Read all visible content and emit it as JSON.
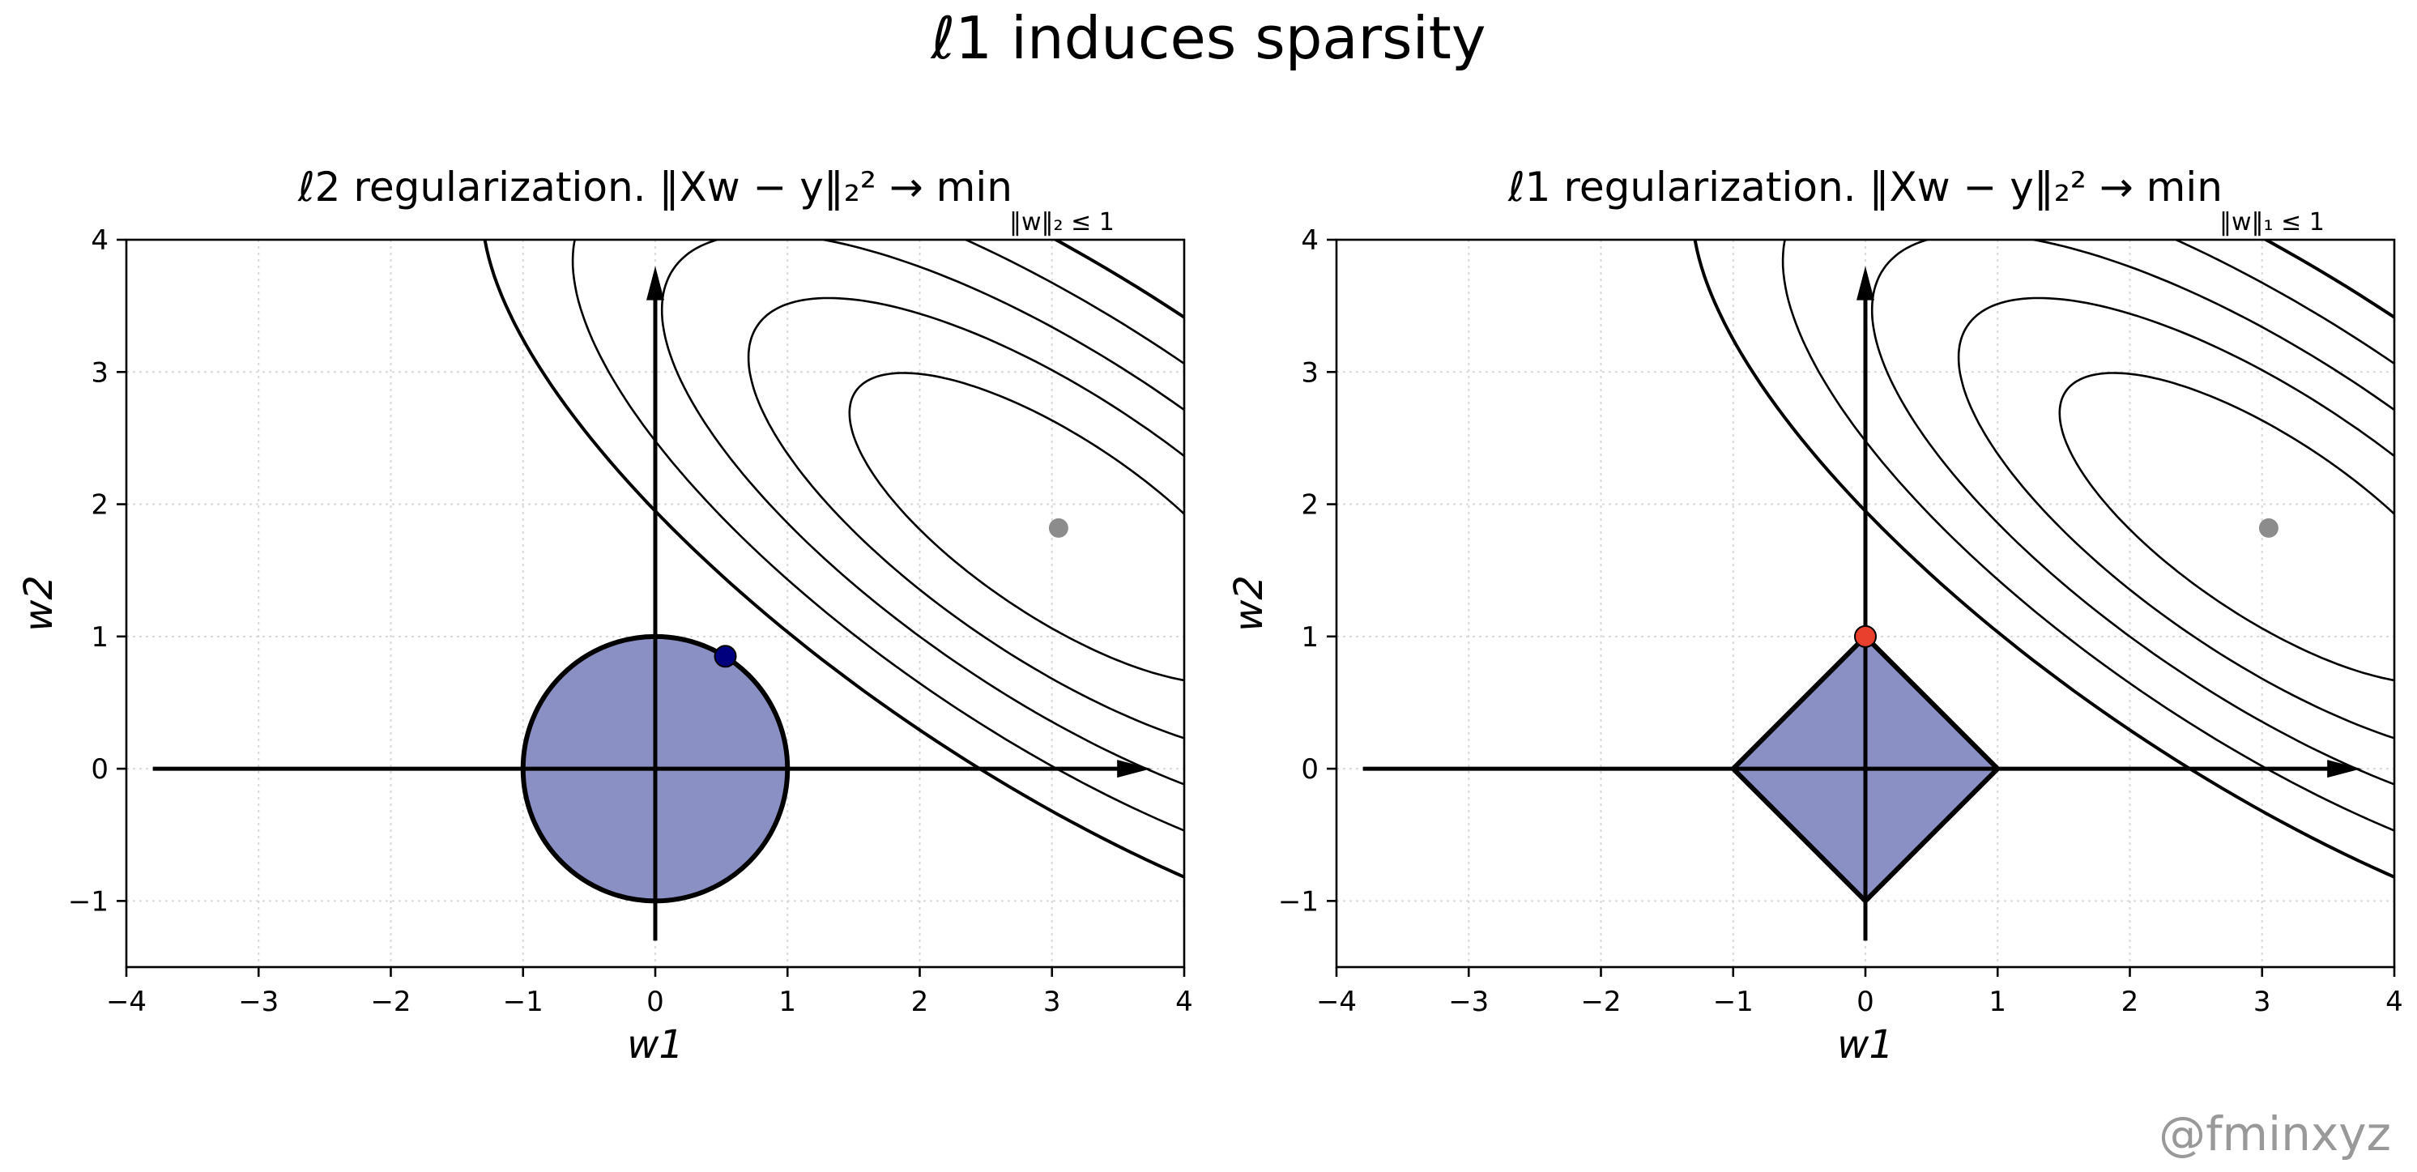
{
  "figure": {
    "suptitle": "ℓ1 induces sparsity",
    "watermark": "@fminxyz"
  },
  "colors": {
    "region_fill": "#8a8fc4",
    "region_edge": "#000000",
    "optimum_point": "#8c8c8c",
    "l2_solution": "#00007f",
    "l1_solution": "#e8402c",
    "grid": "#d9d9d9"
  },
  "chart_data": [
    {
      "type": "line",
      "title": "ℓ2 regularization. ‖Xw − y‖₂² → min",
      "subtitle": "‖w‖₂ ≤ 1",
      "xlabel": "w1",
      "ylabel": "w2",
      "xlim": [
        -4,
        4
      ],
      "ylim": [
        -1.5,
        4
      ],
      "xticks": [
        -4,
        -3,
        -2,
        -1,
        0,
        1,
        2,
        3,
        4
      ],
      "yticks": [
        -1,
        0,
        1,
        2,
        3,
        4
      ],
      "grid": true,
      "constraint": {
        "shape": "circle",
        "center": [
          0,
          0
        ],
        "radius": 1
      },
      "unconstrained_optimum": {
        "x": 3.05,
        "y": 1.82
      },
      "constrained_solution": {
        "x": 0.53,
        "y": 0.85
      },
      "contours": {
        "center": [
          3.05,
          1.82
        ],
        "cov": [
          [
            1,
            -0.55
          ],
          [
            -0.55,
            0.55
          ]
        ],
        "levels": [
          2.5,
          5.5,
          9,
          13.5,
          19
        ]
      },
      "axis_arrows": {
        "x": [
          -3.8,
          3.75
        ],
        "y": [
          -1.3,
          3.8
        ]
      }
    },
    {
      "type": "line",
      "title": "ℓ1 regularization. ‖Xw − y‖₂² → min",
      "subtitle": "‖w‖₁ ≤ 1",
      "xlabel": "w1",
      "ylabel": "w2",
      "xlim": [
        -4,
        4
      ],
      "ylim": [
        -1.5,
        4
      ],
      "xticks": [
        -4,
        -3,
        -2,
        -1,
        0,
        1,
        2,
        3,
        4
      ],
      "yticks": [
        -1,
        0,
        1,
        2,
        3,
        4
      ],
      "grid": true,
      "constraint": {
        "shape": "diamond",
        "center": [
          0,
          0
        ],
        "radius": 1
      },
      "unconstrained_optimum": {
        "x": 3.05,
        "y": 1.82
      },
      "constrained_solution": {
        "x": 0,
        "y": 1
      },
      "contours": {
        "center": [
          3.05,
          1.82
        ],
        "cov": [
          [
            1,
            -0.55
          ],
          [
            -0.55,
            0.55
          ]
        ],
        "levels": [
          2.5,
          5.5,
          9,
          13.5,
          19
        ]
      },
      "axis_arrows": {
        "x": [
          -3.8,
          3.75
        ],
        "y": [
          -1.3,
          3.8
        ]
      }
    }
  ]
}
